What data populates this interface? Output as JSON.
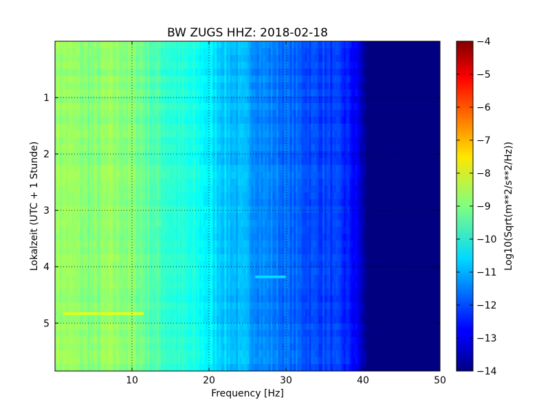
{
  "chart_data": {
    "type": "heatmap",
    "title": "BW ZUGS HHZ: 2018-02-18",
    "xlabel": "Frequency [Hz]",
    "ylabel": "Lokalzeit (UTC + 1 Stunde)",
    "xlim": [
      0,
      50
    ],
    "ylim": [
      5.85,
      0
    ],
    "y_inverted": true,
    "x_ticks": [
      10,
      20,
      30,
      40,
      50
    ],
    "y_ticks": [
      1,
      2,
      3,
      4,
      5
    ],
    "grid": true,
    "grid_style": "dotted",
    "colormap": "jet",
    "colorbar": {
      "label": "Log10(Sqrt(m**2/s**2/Hz))",
      "range": [
        -14,
        -4
      ],
      "ticks": [
        -4,
        -5,
        -6,
        -7,
        -8,
        -9,
        -10,
        -11,
        -12,
        -13,
        -14
      ]
    },
    "spectrum_profile": {
      "frequency_hz": [
        0,
        2,
        5,
        7,
        9,
        11,
        13,
        15,
        17,
        19,
        21,
        23,
        25,
        27,
        29,
        31,
        33,
        35,
        37,
        38.5,
        39.5,
        40.5,
        50
      ],
      "log10_amplitude": [
        -8.7,
        -8.8,
        -9.0,
        -8.8,
        -8.9,
        -9.1,
        -9.5,
        -9.8,
        -10.0,
        -10.2,
        -10.6,
        -10.9,
        -11.1,
        -11.4,
        -11.6,
        -11.8,
        -12.0,
        -12.1,
        -12.3,
        -12.6,
        -13.1,
        -14.0,
        -14.0
      ]
    },
    "notable_features": [
      {
        "kind": "horizontal-band",
        "time": 4.83,
        "freq_range": [
          1,
          11.5
        ],
        "log10_amplitude": -8.0
      },
      {
        "kind": "horizontal-band",
        "time": 4.18,
        "freq_range": [
          26,
          30
        ],
        "log10_amplitude": -10.6
      }
    ]
  }
}
